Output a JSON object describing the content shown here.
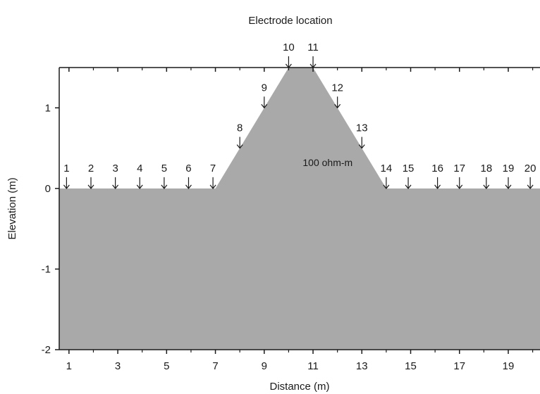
{
  "chart_data": {
    "type": "profile",
    "title": "Electrode location",
    "xlabel": "Distance (m)",
    "ylabel": "Elevation (m)",
    "xlim": [
      0.6,
      20.3
    ],
    "ylim": [
      -2,
      1.5
    ],
    "x_ticks": [
      1,
      3,
      5,
      7,
      9,
      11,
      13,
      15,
      17,
      19
    ],
    "x_ticks_minor": [
      2,
      4,
      6,
      8,
      10,
      12,
      14,
      16,
      18,
      20
    ],
    "y_ticks": [
      -2,
      -1,
      0,
      1
    ],
    "y_tick_labels": [
      "-2",
      "-1",
      "0",
      "1"
    ],
    "body_fill": "#a9a9a9",
    "body_profile": [
      [
        0.6,
        0
      ],
      [
        7,
        0
      ],
      [
        10,
        1.5
      ],
      [
        11,
        1.5
      ],
      [
        14,
        0
      ],
      [
        20.3,
        0
      ],
      [
        20.3,
        -2
      ],
      [
        0.6,
        -2
      ]
    ],
    "region_label": "100 ohm-m",
    "region_label_pos": [
      11.6,
      0.28
    ],
    "electrodes": [
      {
        "label": "1",
        "x": 0.9,
        "z": 0
      },
      {
        "label": "2",
        "x": 1.9,
        "z": 0
      },
      {
        "label": "3",
        "x": 2.9,
        "z": 0
      },
      {
        "label": "4",
        "x": 3.9,
        "z": 0
      },
      {
        "label": "5",
        "x": 4.9,
        "z": 0
      },
      {
        "label": "6",
        "x": 5.9,
        "z": 0
      },
      {
        "label": "7",
        "x": 6.9,
        "z": 0
      },
      {
        "label": "8",
        "x": 8.0,
        "z": 0.5
      },
      {
        "label": "9",
        "x": 9.0,
        "z": 1.0
      },
      {
        "label": "10",
        "x": 10.0,
        "z": 1.5
      },
      {
        "label": "11",
        "x": 11.0,
        "z": 1.5
      },
      {
        "label": "12",
        "x": 12.0,
        "z": 1.0
      },
      {
        "label": "13",
        "x": 13.0,
        "z": 0.5
      },
      {
        "label": "14",
        "x": 14.0,
        "z": 0
      },
      {
        "label": "15",
        "x": 14.9,
        "z": 0
      },
      {
        "label": "16",
        "x": 16.1,
        "z": 0
      },
      {
        "label": "17",
        "x": 17.0,
        "z": 0
      },
      {
        "label": "18",
        "x": 18.1,
        "z": 0
      },
      {
        "label": "19",
        "x": 19.0,
        "z": 0
      },
      {
        "label": "20",
        "x": 19.9,
        "z": 0
      }
    ]
  }
}
